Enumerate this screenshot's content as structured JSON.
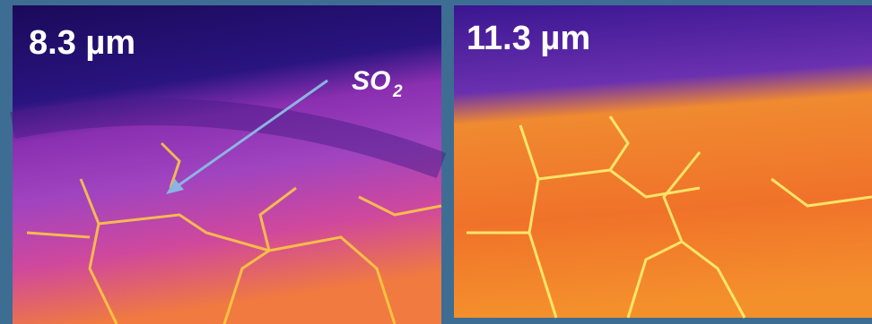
{
  "panels": [
    {
      "label": "8.3 µm"
    },
    {
      "label": "11.3 µm"
    }
  ],
  "annotation": {
    "text": "SO",
    "subscript": "2"
  }
}
